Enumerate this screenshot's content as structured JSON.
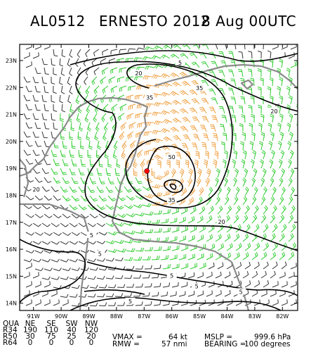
{
  "title": {
    "storm_id": "AL0512",
    "storm": "ERNESTO 2012",
    "time": "8 Aug 00UTC"
  },
  "map": {
    "lat_labels": [
      "23N",
      "22N",
      "21N",
      "20N",
      "19N",
      "18N",
      "17N",
      "16N",
      "15N",
      "14N"
    ],
    "lat_values": [
      23,
      22,
      21,
      20,
      19,
      18,
      17,
      16,
      15,
      14
    ],
    "lon_labels": [
      "91W",
      "90W",
      "89W",
      "88W",
      "87W",
      "86W",
      "85W",
      "84W",
      "83W",
      "82W"
    ],
    "lon_values": [
      -91,
      -90,
      -89,
      -88,
      -87,
      -86,
      -85,
      -84,
      -83,
      -82
    ],
    "contour_labels": [
      {
        "text": "5",
        "lon": -85.7,
        "lat": 22.9
      },
      {
        "text": "20",
        "lon": -87.2,
        "lat": 22.5
      },
      {
        "text": "35",
        "lon": -85.0,
        "lat": 21.95
      },
      {
        "text": "35",
        "lon": -86.8,
        "lat": 21.6
      },
      {
        "text": "20",
        "lon": -82.3,
        "lat": 21.1
      },
      {
        "text": "50",
        "lon": -86.0,
        "lat": 19.4
      },
      {
        "text": "35",
        "lon": -86.0,
        "lat": 17.8
      },
      {
        "text": "20",
        "lon": -90.9,
        "lat": 18.2
      },
      {
        "text": "20",
        "lon": -84.2,
        "lat": 17.0
      },
      {
        "text": "5",
        "lon": -88.9,
        "lat": 16.5
      },
      {
        "text": "5",
        "lon": -88.6,
        "lat": 15.8
      },
      {
        "text": "5",
        "lon": -86.0,
        "lat": 15.0
      },
      {
        "text": "5",
        "lon": -85.1,
        "lat": 14.6
      },
      {
        "text": "5",
        "lon": -83.5,
        "lat": 14.4
      },
      {
        "text": "5",
        "lon": -87.5,
        "lat": 14.05
      }
    ],
    "center": {
      "lon": -86.9,
      "lat": 18.9
    },
    "colors": {
      "barb_weak": "#333333",
      "barb_gale": "#2ecc2e",
      "barb_storm": "#f0a040",
      "coast": "#8a8a8a",
      "contour": "#000000",
      "center": "#ff0000"
    }
  },
  "wind_radii": {
    "headers": [
      "QUA",
      "NE",
      "SE",
      "SW",
      "NW"
    ],
    "rows": [
      {
        "label": "R34",
        "values": [
          "190",
          "110",
          "40",
          "120"
        ]
      },
      {
        "label": "R50",
        "values": [
          "30",
          "75",
          "25",
          "20"
        ]
      },
      {
        "label": "R64",
        "values": [
          "0",
          "0",
          "0",
          "0"
        ]
      }
    ]
  },
  "stats": {
    "vmax_label": "VMAX =",
    "vmax_value": "64 kt",
    "mslp_label": "MSLP =",
    "mslp_value": "999.6 hPa",
    "rmw_label": "RMW =",
    "rmw_value": "57 nmi",
    "bearing_label": "BEARING =",
    "bearing_value": "100 degrees"
  }
}
